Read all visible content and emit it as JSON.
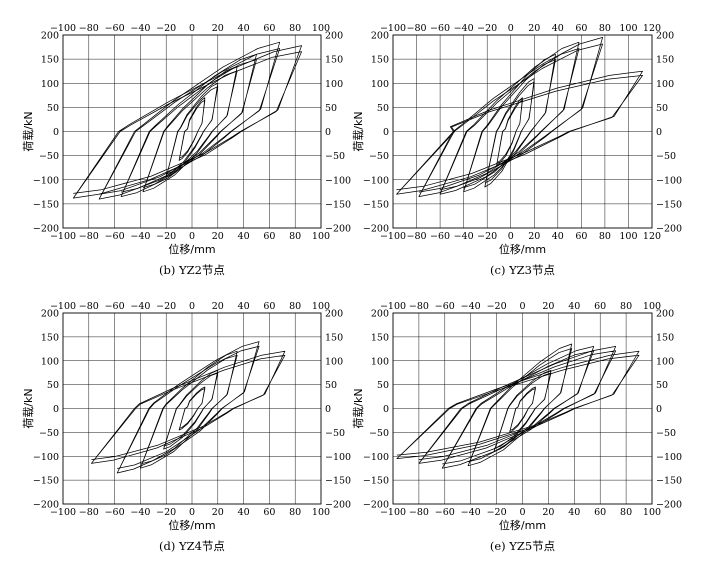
{
  "figure": {
    "panels": [
      {
        "caption": "(b) YZ2节点",
        "xlabel": "位移/mm",
        "ylabel": "荷载/kN"
      },
      {
        "caption": "(c) YZ3节点",
        "xlabel": "位移/mm",
        "ylabel": "荷载/kN"
      },
      {
        "caption": "(d) YZ4节点",
        "xlabel": "位移/mm",
        "ylabel": "荷载/kN"
      },
      {
        "caption": "(e) YZ5节点",
        "xlabel": "位移/mm",
        "ylabel": "荷载/kN"
      }
    ]
  },
  "chart_data": [
    {
      "type": "line",
      "title": "(b) YZ2节点",
      "xlabel": "位移/mm",
      "ylabel": "荷载/kN",
      "xlim": [
        -100,
        100
      ],
      "ylim": [
        -200,
        200
      ],
      "xticks": [
        -100,
        -80,
        -60,
        -40,
        -20,
        0,
        20,
        40,
        60,
        80,
        100
      ],
      "yticks": [
        -200,
        -150,
        -100,
        -50,
        0,
        50,
        100,
        150,
        200
      ],
      "grid": true,
      "mirrored_axes": true,
      "loops": [
        {
          "dmax": 10,
          "dmin": -10,
          "pmax": 70,
          "pmin": -60
        },
        {
          "dmax": 20,
          "dmin": -20,
          "pmax": 100,
          "pmin": -95
        },
        {
          "dmax": 35,
          "dmin": -38,
          "pmax": 135,
          "pmin": -125
        },
        {
          "dmax": 50,
          "dmin": -55,
          "pmax": 160,
          "pmin": -135
        },
        {
          "dmax": 68,
          "dmin": -72,
          "pmax": 185,
          "pmin": -140
        },
        {
          "dmax": 85,
          "dmin": -92,
          "pmax": 178,
          "pmin": -138
        }
      ]
    },
    {
      "type": "line",
      "title": "(c) YZ3节点",
      "xlabel": "位移/mm",
      "ylabel": "荷载/kN",
      "xlim": [
        -100,
        120
      ],
      "ylim": [
        -200,
        200
      ],
      "xticks": [
        -100,
        -80,
        -60,
        -40,
        -20,
        0,
        20,
        40,
        60,
        80,
        100,
        120
      ],
      "yticks": [
        -200,
        -150,
        -100,
        -50,
        0,
        50,
        100,
        150,
        200
      ],
      "grid": true,
      "mirrored_axes": true,
      "loops": [
        {
          "dmax": 10,
          "dmin": -12,
          "pmax": 70,
          "pmin": -70
        },
        {
          "dmax": 20,
          "dmin": -22,
          "pmax": 110,
          "pmin": -115
        },
        {
          "dmax": 38,
          "dmin": -40,
          "pmax": 160,
          "pmin": -125
        },
        {
          "dmax": 58,
          "dmin": -60,
          "pmax": 185,
          "pmin": -130
        },
        {
          "dmax": 78,
          "dmin": -78,
          "pmax": 195,
          "pmin": -135
        },
        {
          "dmax": 112,
          "dmin": -97,
          "pmax": 125,
          "pmin": -130
        }
      ]
    },
    {
      "type": "line",
      "title": "(d) YZ4节点",
      "xlabel": "位移/mm",
      "ylabel": "荷载/kN",
      "xlim": [
        -100,
        100
      ],
      "ylim": [
        -200,
        200
      ],
      "xticks": [
        -100,
        -80,
        -60,
        -40,
        -20,
        0,
        20,
        40,
        60,
        80,
        100
      ],
      "yticks": [
        -200,
        -150,
        -100,
        -50,
        0,
        50,
        100,
        150,
        200
      ],
      "grid": true,
      "mirrored_axes": true,
      "loops": [
        {
          "dmax": 10,
          "dmin": -10,
          "pmax": 45,
          "pmin": -45
        },
        {
          "dmax": 20,
          "dmin": -22,
          "pmax": 80,
          "pmin": -85
        },
        {
          "dmax": 35,
          "dmin": -40,
          "pmax": 120,
          "pmin": -125
        },
        {
          "dmax": 52,
          "dmin": -58,
          "pmax": 140,
          "pmin": -135
        },
        {
          "dmax": 72,
          "dmin": -78,
          "pmax": 120,
          "pmin": -115
        }
      ]
    },
    {
      "type": "line",
      "title": "(e) YZ5节点",
      "xlabel": "位移/mm",
      "ylabel": "荷载/kN",
      "xlim": [
        -100,
        100
      ],
      "ylim": [
        -200,
        200
      ],
      "xticks": [
        -100,
        -80,
        -60,
        -40,
        -20,
        0,
        20,
        40,
        60,
        80,
        100
      ],
      "yticks": [
        -200,
        -150,
        -100,
        -50,
        0,
        50,
        100,
        150,
        200
      ],
      "grid": true,
      "mirrored_axes": true,
      "loops": [
        {
          "dmax": 10,
          "dmin": -10,
          "pmax": 45,
          "pmin": -50
        },
        {
          "dmax": 22,
          "dmin": -22,
          "pmax": 80,
          "pmin": -90
        },
        {
          "dmax": 38,
          "dmin": -42,
          "pmax": 135,
          "pmin": -120
        },
        {
          "dmax": 55,
          "dmin": -62,
          "pmax": 130,
          "pmin": -125
        },
        {
          "dmax": 72,
          "dmin": -80,
          "pmax": 130,
          "pmin": -115
        },
        {
          "dmax": 90,
          "dmin": -97,
          "pmax": 120,
          "pmin": -105
        }
      ]
    }
  ]
}
